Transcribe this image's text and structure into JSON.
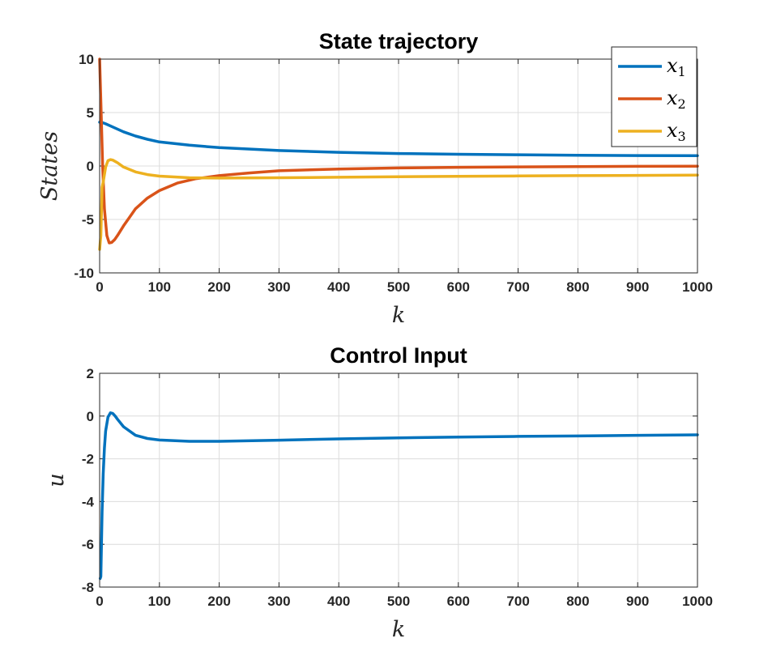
{
  "chart_data": [
    {
      "type": "line",
      "title": "State trajectory",
      "xlabel": "k",
      "ylabel": "States",
      "xlim": [
        0,
        1000
      ],
      "ylim": [
        -10,
        10
      ],
      "xticks": [
        0,
        100,
        200,
        300,
        400,
        500,
        600,
        700,
        800,
        900,
        1000
      ],
      "yticks": [
        -10,
        -5,
        0,
        5,
        10
      ],
      "grid": true,
      "legend_position": "top-right",
      "series": [
        {
          "name": "x",
          "subscript": "1",
          "color": "#0072BD",
          "x": [
            0,
            2,
            5,
            10,
            20,
            40,
            60,
            80,
            100,
            150,
            200,
            300,
            400,
            500,
            600,
            700,
            800,
            900,
            1000
          ],
          "y": [
            4.1,
            4.1,
            4.05,
            3.95,
            3.7,
            3.2,
            2.8,
            2.5,
            2.25,
            1.95,
            1.72,
            1.45,
            1.28,
            1.17,
            1.1,
            1.05,
            1.0,
            0.98,
            0.96
          ]
        },
        {
          "name": "x",
          "subscript": "2",
          "color": "#D95319",
          "x": [
            0,
            2,
            5,
            8,
            12,
            16,
            20,
            25,
            30,
            40,
            50,
            60,
            80,
            100,
            130,
            160,
            200,
            250,
            300,
            400,
            500,
            600,
            700,
            800,
            900,
            1000
          ],
          "y": [
            10.0,
            6.0,
            0.0,
            -4.0,
            -6.5,
            -7.2,
            -7.15,
            -6.9,
            -6.5,
            -5.6,
            -4.8,
            -4.0,
            -3.0,
            -2.3,
            -1.6,
            -1.2,
            -0.9,
            -0.65,
            -0.45,
            -0.28,
            -0.18,
            -0.12,
            -0.08,
            -0.05,
            -0.03,
            -0.02
          ]
        },
        {
          "name": "x",
          "subscript": "3",
          "color": "#EDB120",
          "x": [
            0,
            2,
            4,
            6,
            8,
            10,
            14,
            18,
            22,
            30,
            40,
            60,
            80,
            100,
            150,
            200,
            300,
            400,
            500,
            600,
            700,
            800,
            900,
            1000
          ],
          "y": [
            -7.8,
            -6.5,
            -2.0,
            -1.5,
            -0.8,
            -0.1,
            0.5,
            0.6,
            0.55,
            0.3,
            -0.1,
            -0.55,
            -0.8,
            -0.95,
            -1.1,
            -1.13,
            -1.1,
            -1.05,
            -1.0,
            -0.97,
            -0.93,
            -0.9,
            -0.88,
            -0.85
          ]
        }
      ]
    },
    {
      "type": "line",
      "title": "Control Input",
      "xlabel": "k",
      "ylabel": "u",
      "xlim": [
        0,
        1000
      ],
      "ylim": [
        -8,
        2
      ],
      "xticks": [
        0,
        100,
        200,
        300,
        400,
        500,
        600,
        700,
        800,
        900,
        1000
      ],
      "yticks": [
        -8,
        -6,
        -4,
        -2,
        0,
        2
      ],
      "grid": true,
      "series": [
        {
          "color": "#0072BD",
          "x": [
            1,
            2,
            4,
            6,
            8,
            10,
            14,
            18,
            22,
            26,
            30,
            40,
            60,
            80,
            100,
            150,
            200,
            300,
            400,
            500,
            600,
            700,
            800,
            900,
            1000
          ],
          "y": [
            -7.6,
            -7.5,
            -4.5,
            -2.7,
            -1.5,
            -0.7,
            -0.05,
            0.15,
            0.12,
            0.0,
            -0.15,
            -0.5,
            -0.9,
            -1.05,
            -1.12,
            -1.18,
            -1.18,
            -1.13,
            -1.07,
            -1.02,
            -0.98,
            -0.95,
            -0.93,
            -0.9,
            -0.88
          ]
        }
      ]
    }
  ]
}
